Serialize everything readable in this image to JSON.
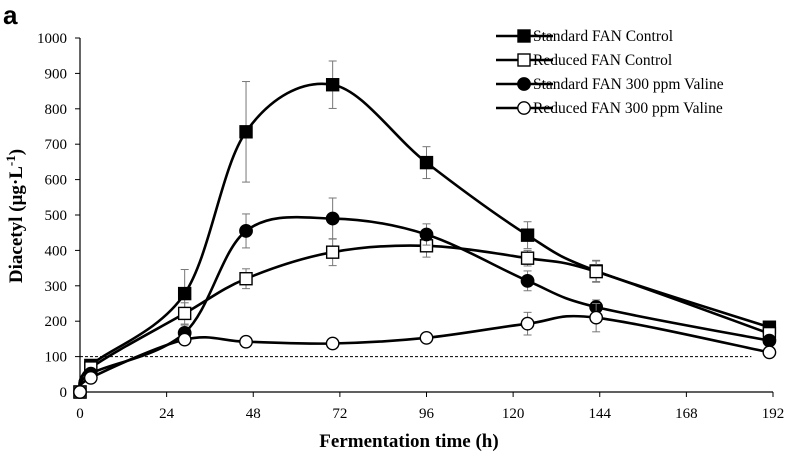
{
  "panel_label": "a",
  "chart_data": {
    "type": "line",
    "title": "",
    "xlabel": "Fermentation time (h)",
    "ylabel": "Diacetyl (µg·L⁻¹)",
    "ylabel_parts": {
      "main": "Diacetyl (µg·L",
      "sup": "-1",
      "end": ")"
    },
    "xlim": [
      0,
      192
    ],
    "ylim": [
      0,
      1000
    ],
    "xticks": [
      "0",
      "24",
      "48",
      "72",
      "96",
      "120",
      "144",
      "168",
      "192"
    ],
    "yticks": [
      "0",
      "100",
      "200",
      "300",
      "400",
      "500",
      "600",
      "700",
      "800",
      "900",
      "1000"
    ],
    "reference_line": {
      "y": 100,
      "x_range": [
        0,
        186
      ],
      "style": "dashed"
    },
    "legend_position": "top-right",
    "series": [
      {
        "name": "Standard FAN Control",
        "marker": "filled-square",
        "x": [
          0,
          3,
          29,
          46,
          70,
          96,
          124,
          143,
          191
        ],
        "y": [
          0,
          75,
          278,
          735,
          868,
          648,
          443,
          342,
          183
        ],
        "err": [
          0,
          0,
          68,
          142,
          67,
          45,
          38,
          30,
          15
        ]
      },
      {
        "name": "Reduced FAN Control",
        "marker": "open-square",
        "x": [
          0,
          3,
          29,
          46,
          70,
          96,
          124,
          143,
          191
        ],
        "y": [
          0,
          68,
          222,
          320,
          395,
          413,
          378,
          340,
          165
        ],
        "err": [
          0,
          0,
          30,
          28,
          38,
          32,
          22,
          30,
          12
        ]
      },
      {
        "name": "Standard FAN 300 ppm Valine",
        "marker": "filled-circle",
        "x": [
          0,
          3,
          29,
          46,
          70,
          96,
          124,
          143,
          191
        ],
        "y": [
          0,
          52,
          167,
          455,
          490,
          445,
          314,
          240,
          145
        ],
        "err": [
          0,
          0,
          22,
          48,
          58,
          30,
          28,
          20,
          10
        ]
      },
      {
        "name": "Reduced FAN 300 ppm Valine",
        "marker": "open-circle",
        "x": [
          0,
          3,
          29,
          46,
          70,
          96,
          124,
          143,
          191
        ],
        "y": [
          0,
          40,
          148,
          142,
          137,
          153,
          193,
          210,
          112
        ],
        "err": [
          0,
          0,
          12,
          15,
          10,
          10,
          32,
          40,
          10
        ]
      }
    ]
  }
}
